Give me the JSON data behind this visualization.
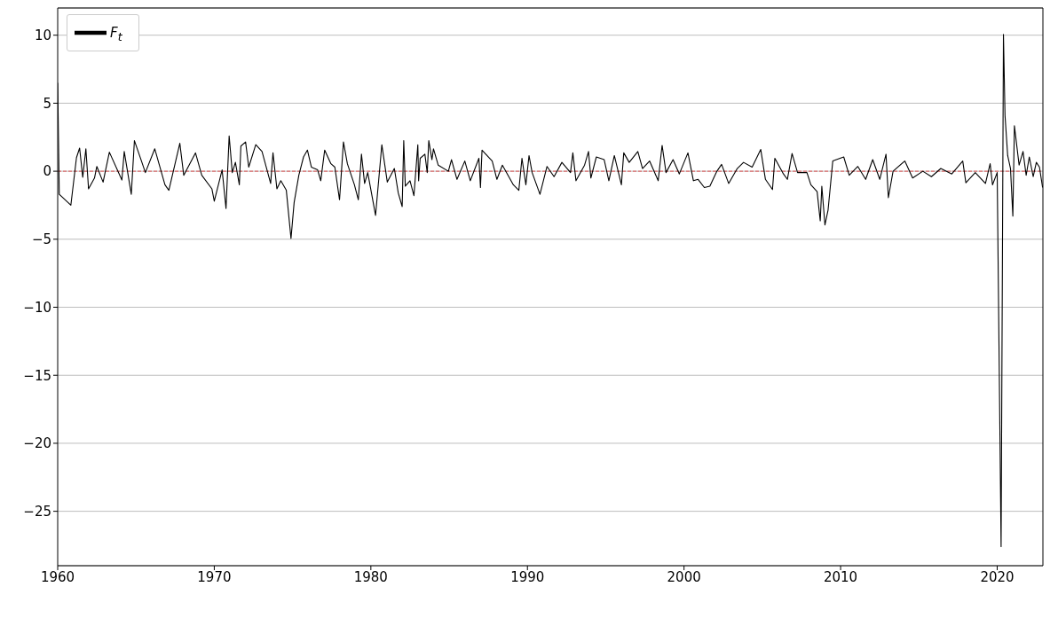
{
  "chart_data": {
    "type": "line",
    "x": [
      1960.0,
      1960.1,
      1960.84,
      1961.2,
      1961.4,
      1961.6,
      1961.8,
      1961.97,
      1962.35,
      1962.5,
      1962.9,
      1963.3,
      1964.1,
      1964.25,
      1964.7,
      1964.9,
      1965.35,
      1965.6,
      1966.2,
      1966.85,
      1967.1,
      1967.8,
      1968.05,
      1968.8,
      1969.2,
      1969.85,
      1970.0,
      1970.5,
      1970.75,
      1970.95,
      1971.15,
      1971.35,
      1971.6,
      1971.7,
      1972.0,
      1972.2,
      1972.65,
      1973.05,
      1973.6,
      1973.75,
      1974.0,
      1974.25,
      1974.6,
      1974.9,
      1975.1,
      1975.4,
      1975.7,
      1975.95,
      1976.2,
      1976.6,
      1976.8,
      1977.05,
      1977.45,
      1977.7,
      1978.0,
      1978.25,
      1978.5,
      1978.95,
      1979.2,
      1979.4,
      1979.6,
      1979.8,
      1980.3,
      1980.7,
      1981.05,
      1981.5,
      1981.75,
      1982.0,
      1982.1,
      1982.2,
      1982.5,
      1982.75,
      1983.0,
      1983.05,
      1983.15,
      1983.45,
      1983.6,
      1983.7,
      1983.9,
      1984.0,
      1984.3,
      1984.95,
      1985.15,
      1985.5,
      1986.0,
      1986.35,
      1986.9,
      1987.0,
      1987.1,
      1987.75,
      1988.05,
      1988.4,
      1989.1,
      1989.45,
      1989.65,
      1989.9,
      1990.1,
      1990.3,
      1990.8,
      1991.25,
      1991.7,
      1992.2,
      1992.75,
      1992.9,
      1993.1,
      1993.65,
      1993.9,
      1994.05,
      1994.4,
      1994.9,
      1995.2,
      1995.55,
      1996.0,
      1996.15,
      1996.5,
      1997.05,
      1997.35,
      1997.8,
      1998.35,
      1998.6,
      1998.85,
      1999.3,
      1999.7,
      2000.25,
      2000.6,
      2000.9,
      2001.3,
      2001.65,
      2002.1,
      2002.4,
      2002.85,
      2003.4,
      2003.8,
      2004.35,
      2004.9,
      2005.2,
      2005.65,
      2005.8,
      2006.35,
      2006.6,
      2006.9,
      2007.25,
      2007.85,
      2008.1,
      2008.5,
      2008.7,
      2008.8,
      2009.0,
      2009.2,
      2009.5,
      2010.2,
      2010.55,
      2011.1,
      2011.6,
      2012.05,
      2012.5,
      2012.9,
      2013.05,
      2013.35,
      2014.1,
      2014.6,
      2015.25,
      2015.8,
      2016.4,
      2017.1,
      2017.8,
      2018.0,
      2018.6,
      2019.25,
      2019.55,
      2019.7,
      2020.0,
      2020.25,
      2020.4,
      2020.5,
      2020.67,
      2020.85,
      2021.0,
      2021.1,
      2021.4,
      2021.65,
      2021.85,
      2022.05,
      2022.3,
      2022.5,
      2022.7,
      2022.9
    ],
    "series": [
      {
        "name": "F$_{t}$",
        "color": "#000000",
        "values": [
          6.5,
          -1.7,
          -2.5,
          1.0,
          1.7,
          -0.45,
          1.65,
          -1.3,
          -0.5,
          0.35,
          -0.8,
          1.4,
          -0.65,
          1.45,
          -1.7,
          2.25,
          0.75,
          -0.1,
          1.65,
          -1.0,
          -1.4,
          2.05,
          -0.3,
          1.35,
          -0.3,
          -1.3,
          -2.2,
          0.1,
          -2.75,
          2.6,
          -0.1,
          0.65,
          -1.0,
          1.85,
          2.15,
          0.3,
          1.95,
          1.45,
          -0.9,
          1.35,
          -1.3,
          -0.7,
          -1.4,
          -4.95,
          -2.3,
          -0.3,
          1.05,
          1.55,
          0.3,
          0.1,
          -0.7,
          1.55,
          0.55,
          0.3,
          -2.1,
          2.15,
          0.55,
          -1.0,
          -2.1,
          1.25,
          -0.9,
          -0.1,
          -3.25,
          1.95,
          -0.8,
          0.2,
          -1.6,
          -2.6,
          2.25,
          -1.1,
          -0.7,
          -1.8,
          1.95,
          -0.7,
          0.95,
          1.25,
          -0.1,
          2.25,
          0.85,
          1.65,
          0.45,
          0.0,
          0.85,
          -0.6,
          0.75,
          -0.7,
          0.95,
          -1.2,
          1.55,
          0.75,
          -0.6,
          0.45,
          -1.0,
          -1.4,
          0.95,
          -1.0,
          1.15,
          -0.1,
          -1.7,
          0.35,
          -0.4,
          0.65,
          -0.1,
          1.35,
          -0.7,
          0.45,
          1.45,
          -0.5,
          1.05,
          0.85,
          -0.7,
          1.15,
          -1.0,
          1.35,
          0.65,
          1.45,
          0.2,
          0.75,
          -0.7,
          1.9,
          -0.1,
          0.85,
          -0.2,
          1.35,
          -0.7,
          -0.6,
          -1.2,
          -1.1,
          0.0,
          0.5,
          -0.9,
          0.2,
          0.65,
          0.3,
          1.6,
          -0.6,
          -1.35,
          0.95,
          -0.2,
          -0.6,
          1.3,
          -0.1,
          -0.1,
          -1.0,
          -1.5,
          -3.65,
          -1.1,
          -3.95,
          -2.85,
          0.75,
          1.05,
          -0.3,
          0.35,
          -0.6,
          0.85,
          -0.6,
          1.25,
          -1.95,
          0.0,
          0.75,
          -0.5,
          0.0,
          -0.4,
          0.2,
          -0.2,
          0.75,
          -0.85,
          -0.1,
          -0.9,
          0.55,
          -1.0,
          -0.1,
          -27.6,
          10.05,
          4.1,
          1.15,
          0.2,
          -3.3,
          3.35,
          0.45,
          1.45,
          -0.3,
          1.05,
          -0.4,
          0.65,
          0.3,
          -1.2
        ]
      }
    ],
    "xlim": [
      1960,
      2022.92
    ],
    "xticks": [
      1960,
      1970,
      1980,
      1990,
      2000,
      2010,
      2020
    ],
    "ylim": [
      -29,
      12
    ],
    "yticks": [
      -25,
      -20,
      -15,
      -10,
      -5,
      0,
      5,
      10
    ],
    "grid": "y",
    "legend": "top left",
    "marker": "none",
    "line_style": "solid",
    "ref_lines": [
      {
        "axis": "y",
        "value": 0,
        "color": "#e03030",
        "line_style": "dashed"
      }
    ]
  }
}
